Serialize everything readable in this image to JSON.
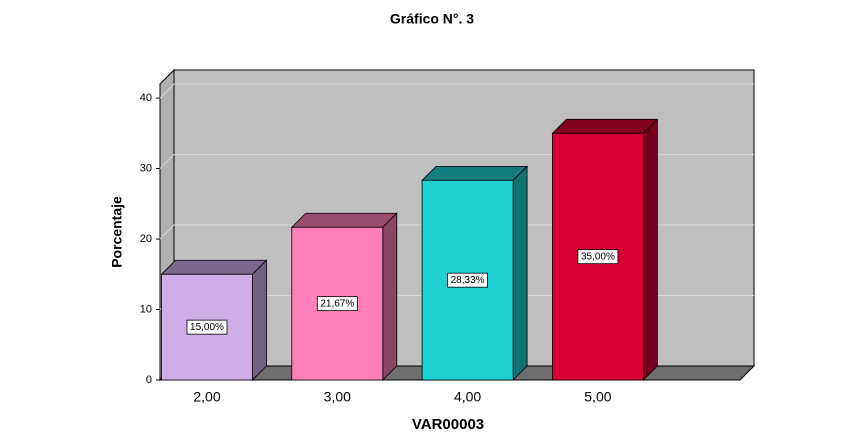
{
  "chart_data": {
    "type": "bar3d",
    "title": "Gráfico N°. 3",
    "x_label": "VAR00003",
    "y_label": "Porcentaje",
    "categories": [
      "2,00",
      "3,00",
      "4,00",
      "5,00"
    ],
    "values": [
      15,
      21.67,
      28.33,
      35
    ],
    "value_labels": [
      "15,00%",
      "21,67%",
      "28,33%",
      "35,00%"
    ],
    "colors": [
      "#cfaee8",
      "#ff80b8",
      "#1fd0d0",
      "#d80032"
    ],
    "ylim": [
      0,
      42
    ],
    "yticks": [
      0,
      10,
      20,
      30,
      40
    ],
    "grid": true
  }
}
